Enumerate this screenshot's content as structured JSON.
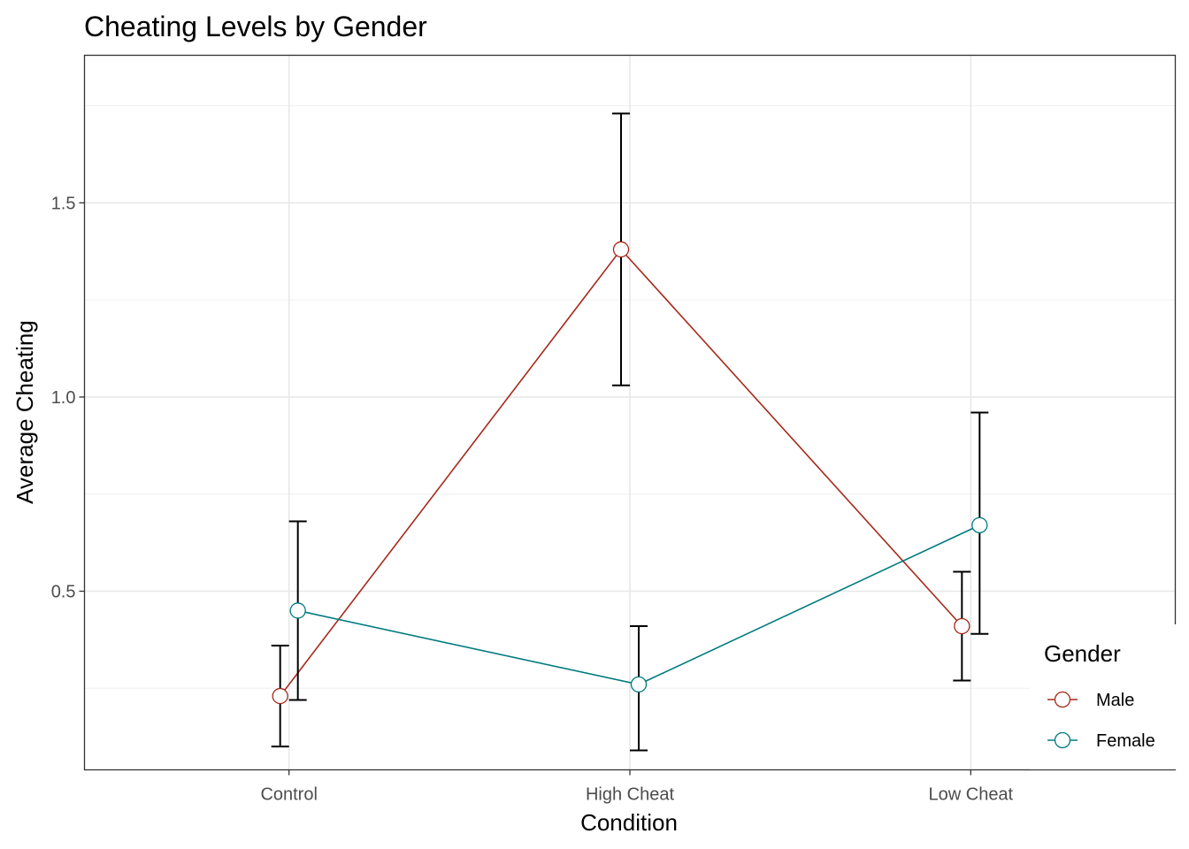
{
  "chart_data": {
    "type": "line",
    "title": "Cheating Levels by Gender",
    "xlabel": "Condition",
    "ylabel": "Average Cheating",
    "categories": [
      "Control",
      "High Cheat",
      "Low Cheat"
    ],
    "ylim": [
      0.04,
      1.88
    ],
    "yticks": [
      0.5,
      1.0,
      1.5
    ],
    "ytick_labels": [
      "0.5",
      "1.0",
      "1.5"
    ],
    "grid": true,
    "legend": {
      "title": "Gender",
      "position": "bottom-right"
    },
    "series": [
      {
        "name": "Male",
        "color": "#a52a1a",
        "values": [
          0.23,
          1.38,
          0.41
        ],
        "err_low": [
          0.1,
          1.03,
          0.27
        ],
        "err_high": [
          0.36,
          1.73,
          0.55
        ]
      },
      {
        "name": "Female",
        "color": "#007b7f",
        "values": [
          0.45,
          0.26,
          0.67
        ],
        "err_low": [
          0.22,
          0.09,
          0.39
        ],
        "err_high": [
          0.68,
          0.41,
          0.96
        ]
      }
    ],
    "errorbar_color": "#000000"
  }
}
